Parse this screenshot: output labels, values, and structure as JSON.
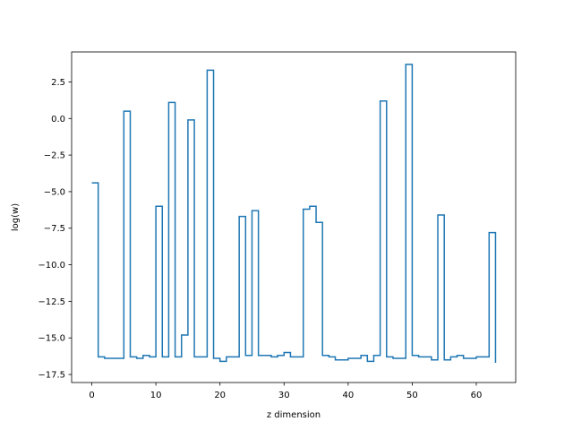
{
  "chart_data": {
    "type": "line",
    "drawstyle": "steps-post",
    "xlabel": "z dimension",
    "ylabel": "log(w)",
    "xlim": [
      -3.15,
      66.15
    ],
    "ylim": [
      -18.05,
      4.55
    ],
    "xticks": [
      0,
      10,
      20,
      30,
      40,
      50,
      60
    ],
    "xtick_labels": [
      "0",
      "10",
      "20",
      "30",
      "40",
      "50",
      "60"
    ],
    "yticks": [
      2.5,
      0.0,
      -2.5,
      -5.0,
      -7.5,
      -10.0,
      -12.5,
      -15.0,
      -17.5
    ],
    "ytick_labels": [
      "2.5",
      "0.0",
      "−2.5",
      "−5.0",
      "−7.5",
      "−10.0",
      "−12.5",
      "−15.0",
      "−17.5"
    ],
    "grid": false,
    "colors": {
      "line": "#1f77b4",
      "frame": "#000000"
    },
    "series": [
      {
        "x": [
          0,
          1,
          2,
          3,
          4,
          5,
          6,
          7,
          8,
          9,
          10,
          11,
          12,
          13,
          14,
          15,
          16,
          17,
          18,
          19,
          20,
          21,
          22,
          23,
          24,
          25,
          26,
          27,
          28,
          29,
          30,
          31,
          32,
          33,
          34,
          35,
          36,
          37,
          38,
          39,
          40,
          41,
          42,
          43,
          44,
          45,
          46,
          47,
          48,
          49,
          50,
          51,
          52,
          53,
          54,
          55,
          56,
          57,
          58,
          59,
          60,
          61,
          62,
          63
        ],
        "values": [
          -4.4,
          -16.3,
          -16.4,
          -16.4,
          -16.4,
          0.5,
          -16.3,
          -16.4,
          -16.2,
          -16.3,
          -6.0,
          -16.3,
          1.1,
          -16.3,
          -14.8,
          -0.1,
          -16.3,
          -16.3,
          3.3,
          -16.4,
          -16.6,
          -16.3,
          -16.3,
          -6.7,
          -16.2,
          -6.3,
          -16.2,
          -16.2,
          -16.3,
          -16.2,
          -16.0,
          -16.3,
          -16.3,
          -6.2,
          -6.0,
          -7.1,
          -16.2,
          -16.3,
          -16.5,
          -16.5,
          -16.4,
          -16.4,
          -16.2,
          -16.6,
          -16.2,
          1.2,
          -16.3,
          -16.4,
          -16.4,
          3.7,
          -16.2,
          -16.3,
          -16.3,
          -16.5,
          -6.6,
          -16.5,
          -16.3,
          -16.2,
          -16.4,
          -16.4,
          -16.3,
          -16.3,
          -7.8,
          -16.7
        ]
      }
    ]
  }
}
